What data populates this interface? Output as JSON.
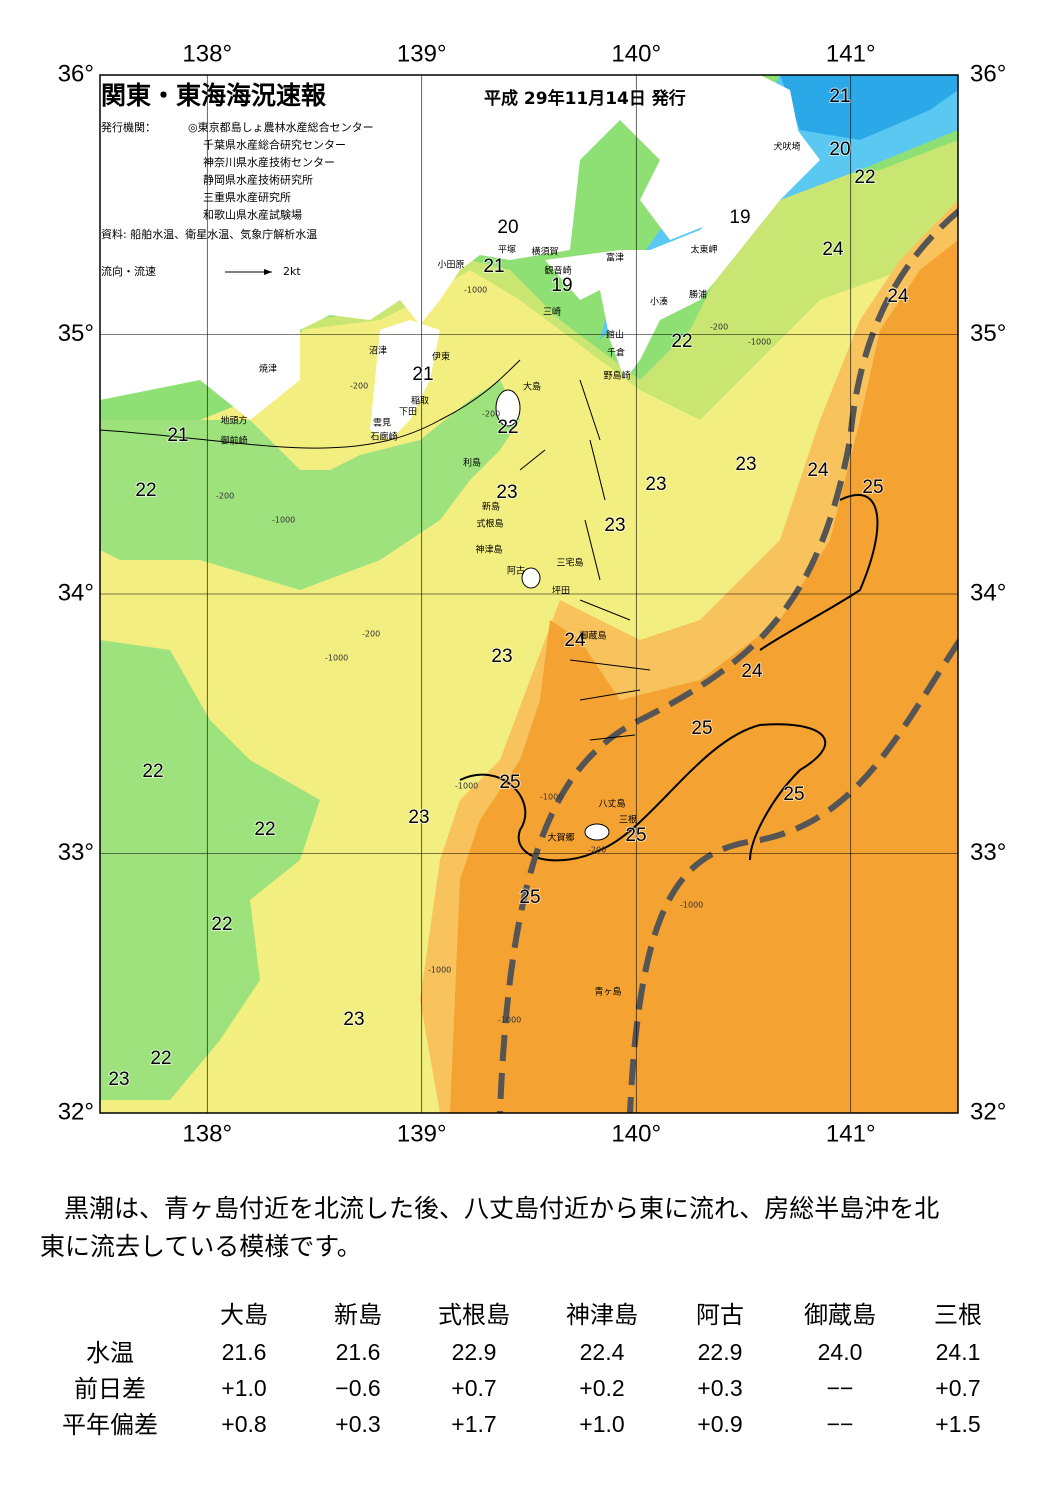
{
  "header": {
    "title": "関東・東海海況速報",
    "date": "平成 29年11月14日 発行",
    "issuer_label": "発行機関：",
    "issuers": [
      "◎東京都島しょ農林水産総合センター",
      "千葉県水産総合研究センター",
      "神奈川県水産技術センター",
      "静岡県水産技術研究所",
      "三重県水産研究所",
      "和歌山県水産試験場"
    ],
    "source": "資料: 船舶水温、衛星水温、気象庁解析水温",
    "legend_label": "流向・流速",
    "legend_speed": "2kt"
  },
  "map": {
    "xlim": [
      137.5,
      141.5
    ],
    "ylim": [
      32,
      36
    ],
    "xticks": [
      {
        "value": 138,
        "label": "138°"
      },
      {
        "value": 139,
        "label": "139°"
      },
      {
        "value": 140,
        "label": "140°"
      },
      {
        "value": 141,
        "label": "141°"
      }
    ],
    "yticks": [
      {
        "value": 32,
        "label": "32°"
      },
      {
        "value": 33,
        "label": "33°"
      },
      {
        "value": 34,
        "label": "34°"
      },
      {
        "value": 35,
        "label": "35°"
      },
      {
        "value": 36,
        "label": "36°"
      }
    ],
    "isotherm_labels": [
      21,
      20,
      22,
      19,
      24,
      24,
      20,
      21,
      19,
      22,
      21,
      22,
      21,
      22,
      23,
      23,
      24,
      25,
      23,
      23,
      24,
      23,
      24,
      25,
      22,
      25,
      25,
      22,
      23,
      25,
      22,
      25,
      23,
      22,
      23
    ],
    "place_names": [
      "犬吠埼",
      "太東岬",
      "勝浦",
      "小湊",
      "富津",
      "横須賀",
      "観音崎",
      "平塚",
      "小田原",
      "三崎",
      "館山",
      "千倉",
      "野島崎",
      "沼津",
      "伊東",
      "焼津",
      "稲取",
      "下田",
      "雲見",
      "石廊崎",
      "地頭方",
      "御前崎",
      "大島",
      "利島",
      "新島",
      "式根島",
      "神津島",
      "阿古",
      "三宅島",
      "坪田",
      "御蔵島",
      "八丈島",
      "三根",
      "大賀郷",
      "青ヶ島"
    ],
    "depth_labels": [
      "-1000",
      "-200",
      "-200",
      "-200",
      "-1000",
      "-1000",
      "-200",
      "-200",
      "-1000",
      "-1000",
      "-1000",
      "-200",
      "-1000",
      "-1000",
      "-1000"
    ]
  },
  "comment": [
    "黒潮は、青ヶ島付近を北流した後、八丈島付近から東に流れ、房総半島沖を北",
    "東に流去している模様です。"
  ],
  "table": {
    "columns": [
      "大島",
      "新島",
      "式根島",
      "神津島",
      "阿古",
      "御蔵島",
      "三根"
    ],
    "rows": [
      {
        "label": "水温",
        "values": [
          "21.6",
          "21.6",
          "22.9",
          "22.4",
          "22.9",
          "24.0",
          "24.1"
        ]
      },
      {
        "label": "前日差",
        "values": [
          "+1.0",
          "−0.6",
          "+0.7",
          "+0.2",
          "+0.3",
          "−−",
          "+0.7"
        ]
      },
      {
        "label": "平年偏差",
        "values": [
          "+0.8",
          "+0.3",
          "+1.7",
          "+1.0",
          "+0.9",
          "−−",
          "+1.5"
        ]
      }
    ]
  }
}
